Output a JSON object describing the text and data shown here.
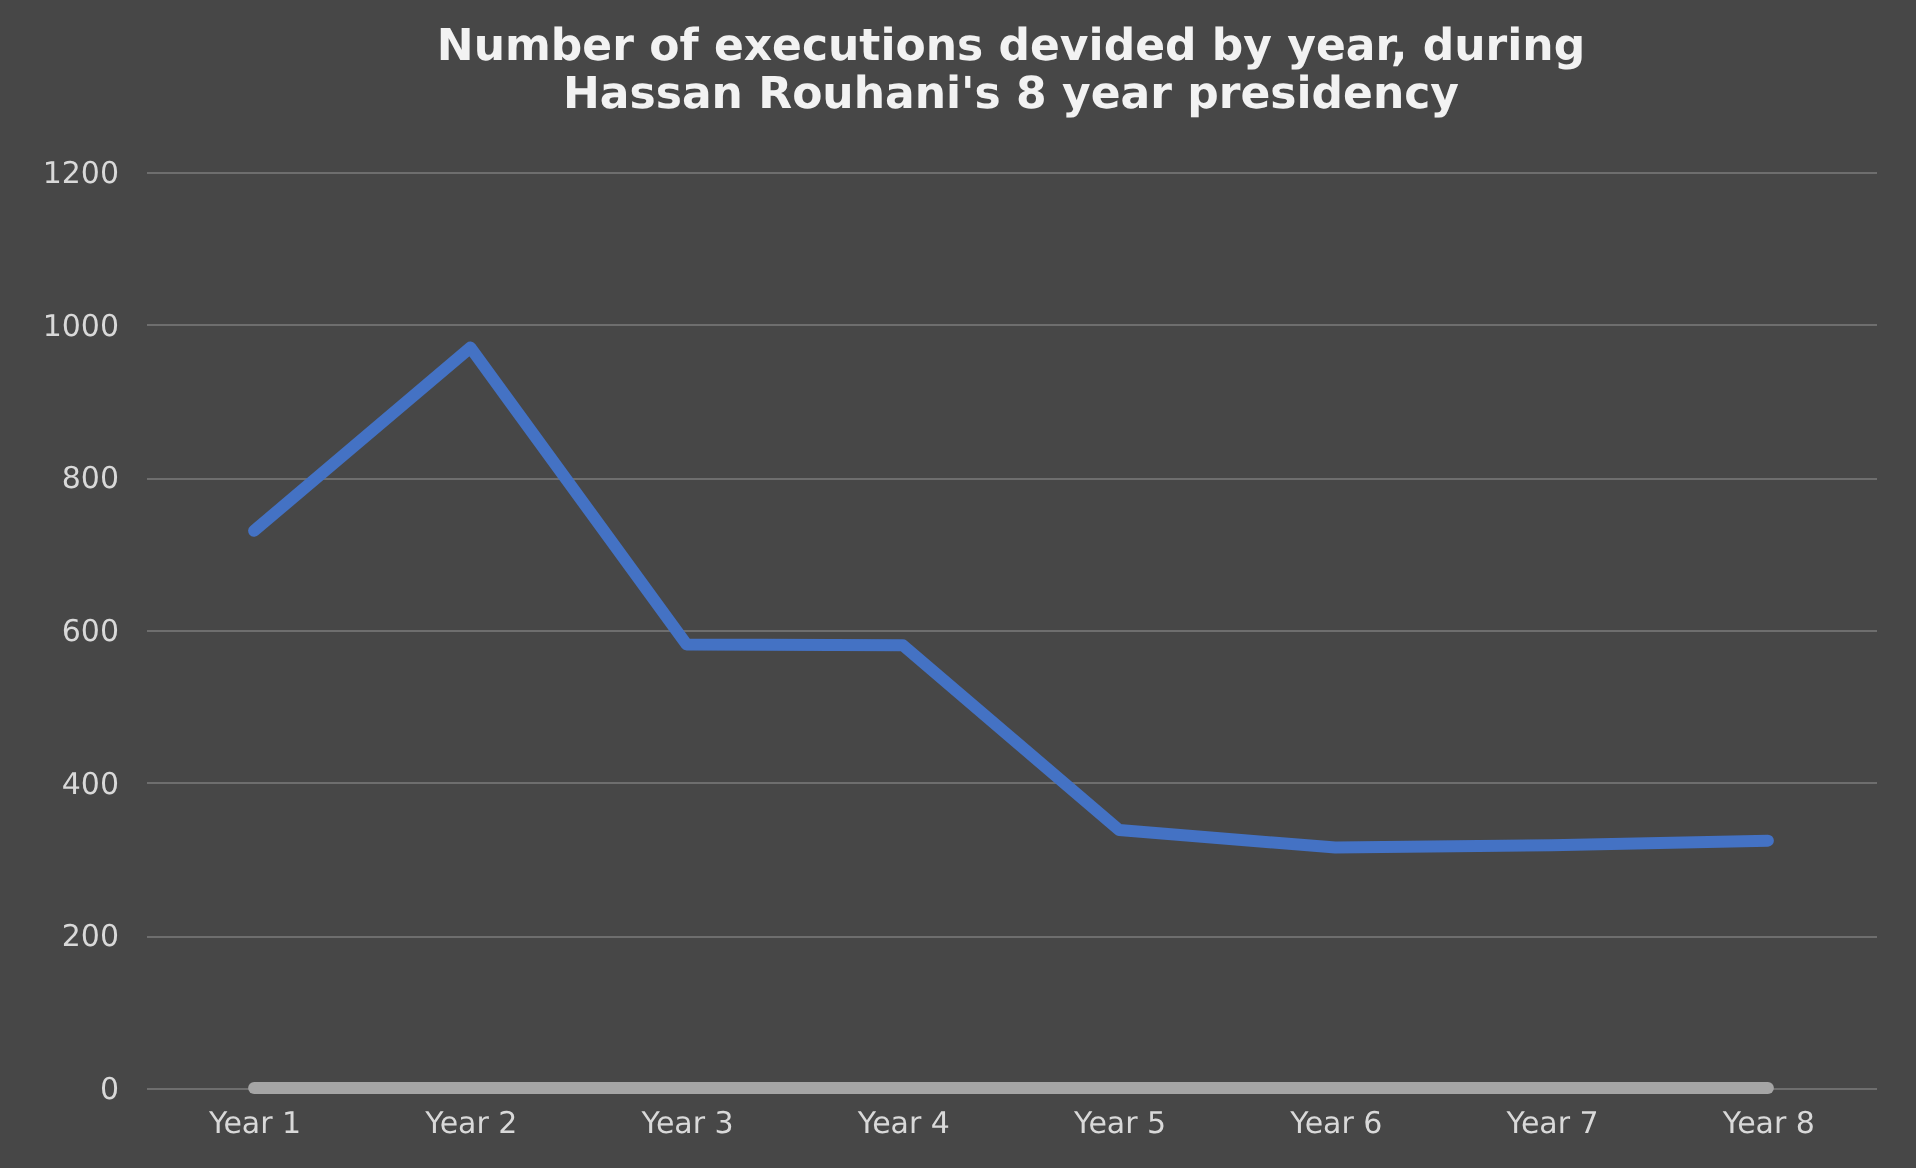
{
  "chart_data": {
    "type": "line",
    "title": [
      "Number of executions devided by year, during",
      "Hassan Rouhani's 8 year presidency"
    ],
    "categories": [
      "Year 1",
      "Year 2",
      "Year 3",
      "Year 4",
      "Year 5",
      "Year 6",
      "Year 7",
      "Year 8"
    ],
    "series": [
      {
        "color": "#4472c4",
        "values": [
          730,
          970,
          581,
          580,
          338,
          315,
          318,
          324
        ]
      },
      {
        "color": "#a5a5a5",
        "values": [
          0,
          0,
          0,
          0,
          0,
          0,
          0,
          0
        ]
      }
    ],
    "ylim": [
      0,
      1200
    ],
    "yticks": [
      0,
      200,
      400,
      600,
      800,
      1000,
      1200
    ],
    "grid": "y",
    "legend": false,
    "marker": "none",
    "line_style": "solid"
  }
}
